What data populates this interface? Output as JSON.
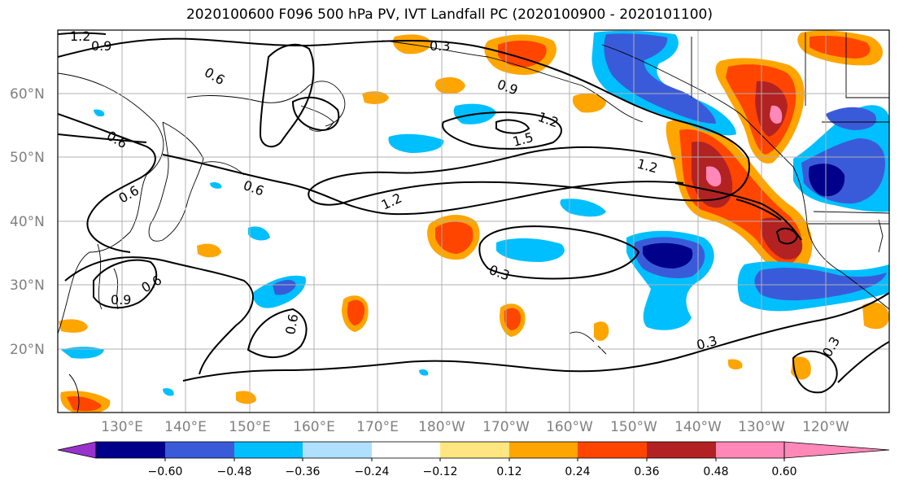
{
  "title": "2020100600 F096 500 hPa PV, IVT Landfall PC (2020100900 - 2020101100)",
  "map": {
    "longitude_labels": [
      "130°E",
      "140°E",
      "150°E",
      "160°E",
      "170°E",
      "180°W",
      "170°W",
      "160°W",
      "150°W",
      "140°W",
      "130°W",
      "120°W"
    ],
    "latitude_labels": [
      "60°N",
      "50°N",
      "40°N",
      "30°N",
      "20°N"
    ],
    "gridlines": true
  },
  "contours": {
    "labels": [
      "1.2",
      "0.9",
      "0.6",
      "0.3",
      "0.6",
      "0.9",
      "1.2",
      "1.5",
      "0.6",
      "0.6",
      "1.2",
      "0.3",
      "0.9",
      "0.6",
      "0.6",
      "0.3",
      "0.3",
      "1.2"
    ]
  },
  "colorbar": {
    "ticks": [
      "−0.60",
      "−0.48",
      "−0.36",
      "−0.24",
      "−0.12",
      "0.12",
      "0.24",
      "0.36",
      "0.48",
      "0.60"
    ],
    "colors": [
      "#9932cc",
      "#00008b",
      "#3a5bd9",
      "#00bfff",
      "#b0e0ff",
      "#ffffff",
      "#ffe680",
      "#ffa500",
      "#ff4500",
      "#b22222",
      "#ff88b8"
    ]
  }
}
